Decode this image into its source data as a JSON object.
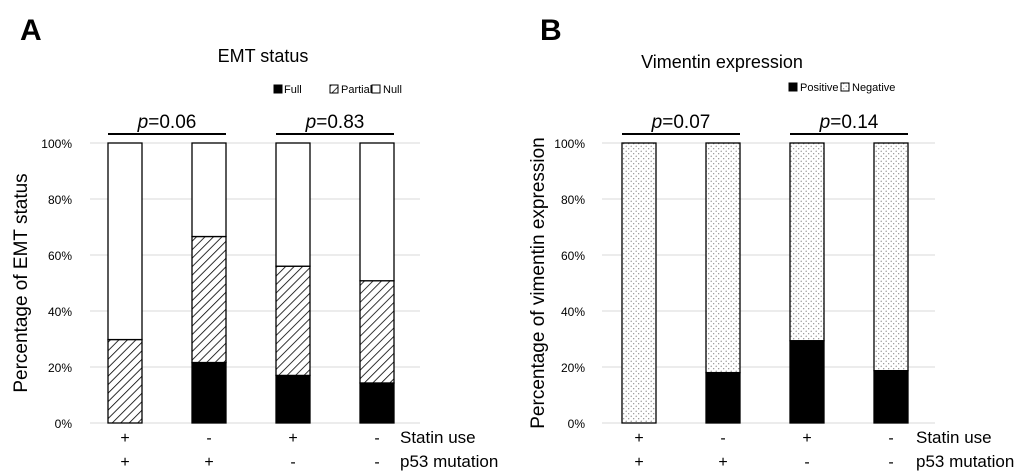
{
  "chart_data": [
    {
      "panel_label": "A",
      "type": "bar",
      "stacked": true,
      "percent": true,
      "title": "EMT status",
      "ylabel": "Percentage of EMT status",
      "ylim": [
        0,
        100
      ],
      "yticks": [
        "0%",
        "20%",
        "40%",
        "60%",
        "80%",
        "100%"
      ],
      "grid": true,
      "legend_position": "top-right",
      "series": [
        {
          "name": "Full",
          "values": [
            0,
            21.6,
            17,
            14.3
          ]
        },
        {
          "name": "Partial",
          "values": [
            29.8,
            45,
            39,
            36.5
          ]
        },
        {
          "name": "Null",
          "values": [
            70.2,
            33.4,
            44,
            49.2
          ]
        }
      ],
      "group_rows": [
        {
          "label": "Statin use",
          "values": [
            "+",
            "-",
            "+",
            "-"
          ]
        },
        {
          "label": "p53 mutation",
          "values": [
            "+",
            "+",
            "-",
            "-"
          ]
        }
      ],
      "annotations": [
        {
          "prefix": "p",
          "text": "=0.06",
          "pair": [
            0,
            1
          ]
        },
        {
          "prefix": "p",
          "text": "=0.83",
          "pair": [
            2,
            3
          ]
        }
      ],
      "colors": {
        "Full": "#000000",
        "Partial": "hatched",
        "Null": "#ffffff"
      }
    },
    {
      "panel_label": "B",
      "type": "bar",
      "stacked": true,
      "percent": true,
      "title": "Vimentin expression",
      "ylabel": "Percentage of vimentin expression",
      "ylim": [
        0,
        100
      ],
      "yticks": [
        "0%",
        "20%",
        "40%",
        "60%",
        "80%",
        "100%"
      ],
      "grid": true,
      "legend_position": "top-right",
      "series": [
        {
          "name": "Positive",
          "values": [
            0,
            18,
            29.4,
            18.7
          ]
        },
        {
          "name": "Negative",
          "values": [
            100,
            82,
            70.6,
            81.3
          ]
        }
      ],
      "group_rows": [
        {
          "label": "Statin use",
          "values": [
            "+",
            "-",
            "+",
            "-"
          ]
        },
        {
          "label": "p53 mutation",
          "values": [
            "+",
            "+",
            "-",
            "-"
          ]
        }
      ],
      "annotations": [
        {
          "prefix": "p",
          "text": "=0.07",
          "pair": [
            0,
            1
          ]
        },
        {
          "prefix": "p",
          "text": "=0.14",
          "pair": [
            2,
            3
          ]
        }
      ],
      "colors": {
        "Positive": "#000000",
        "Negative": "dotted"
      }
    }
  ]
}
